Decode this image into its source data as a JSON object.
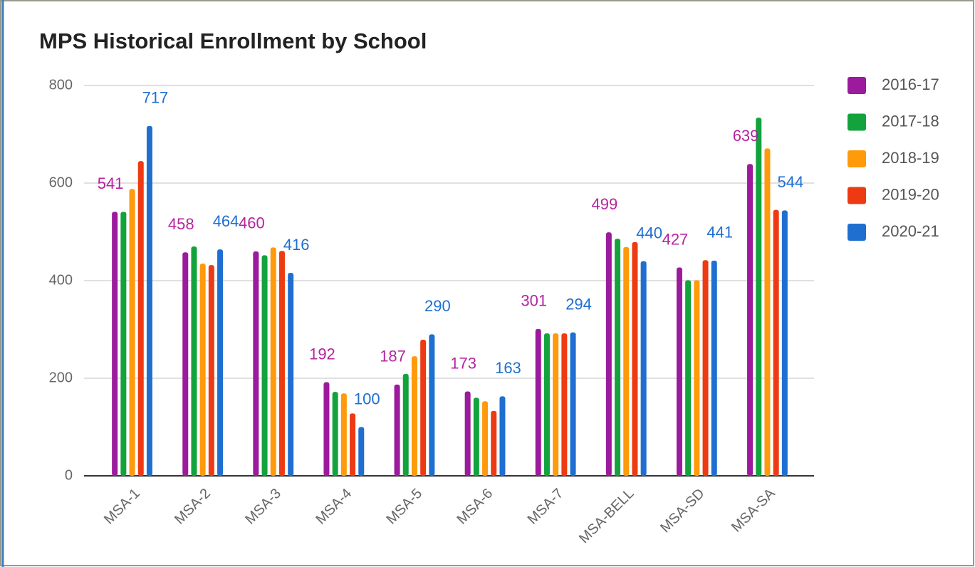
{
  "chart_data": {
    "type": "bar",
    "title": "MPS Historical Enrollment by School",
    "categories": [
      "MSA-1",
      "MSA-2",
      "MSA-3",
      "MSA-4",
      "MSA-5",
      "MSA-6",
      "MSA-7",
      "MSA-BELL",
      "MSA-SD",
      "MSA-SA"
    ],
    "series": [
      {
        "name": "2016-17",
        "color": "#9c1a9c",
        "show_labels": true,
        "values": [
          541,
          458,
          460,
          192,
          187,
          173,
          301,
          499,
          427,
          639
        ]
      },
      {
        "name": "2017-18",
        "color": "#12a33d",
        "show_labels": false,
        "values": [
          541,
          470,
          452,
          172,
          209,
          160,
          292,
          486,
          401,
          734
        ]
      },
      {
        "name": "2018-19",
        "color": "#ff9a0a",
        "show_labels": false,
        "values": [
          588,
          435,
          468,
          169,
          245,
          153,
          292,
          469,
          401,
          671
        ]
      },
      {
        "name": "2019-20",
        "color": "#ee3a12",
        "show_labels": false,
        "values": [
          645,
          432,
          461,
          128,
          279,
          133,
          292,
          479,
          442,
          545
        ]
      },
      {
        "name": "2020-21",
        "color": "#1f6fd1",
        "show_labels": true,
        "values": [
          717,
          464,
          416,
          100,
          290,
          163,
          294,
          440,
          441,
          544
        ]
      }
    ],
    "ylim": [
      0,
      800
    ],
    "yticks": [
      0,
      200,
      400,
      600,
      800
    ],
    "grid": true,
    "legend": "right"
  }
}
